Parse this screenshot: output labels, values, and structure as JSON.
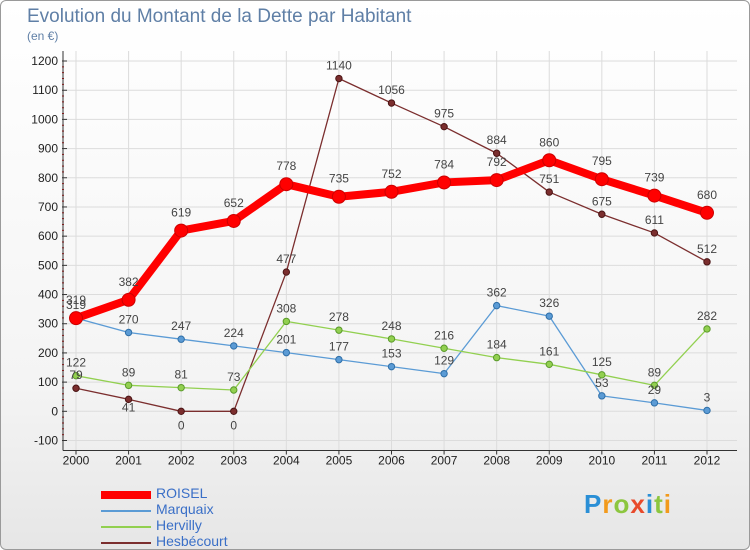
{
  "title": "Evolution du Montant de la Dette par Habitant",
  "unit": "(en €)",
  "logo": [
    "P",
    "r",
    "o",
    "x",
    "i",
    "t",
    "i"
  ],
  "logo_colors": [
    "#2a8fd6",
    "#f29a1c",
    "#8cc63f",
    "#e84a2b",
    "#2a8fd6",
    "#8cc63f",
    "#f29a1c"
  ],
  "chart_data": {
    "type": "line",
    "title": "Evolution du Montant de la Dette par Habitant",
    "ylabel": "(en €)",
    "xlabel": "",
    "x": [
      "2000",
      "2001",
      "2002",
      "2003",
      "2004",
      "2005",
      "2006",
      "2007",
      "2008",
      "2009",
      "2010",
      "2011",
      "2012"
    ],
    "ylim": [
      -100,
      1200
    ],
    "yticks": [
      "-100",
      "0",
      "100",
      "200",
      "300",
      "400",
      "500",
      "600",
      "700",
      "800",
      "900",
      "1000",
      "1100",
      "1200"
    ],
    "grid": true,
    "legend": "bottom-left",
    "series": [
      {
        "name": "ROISEL",
        "color": "#ff0000",
        "values": [
          319,
          382,
          619,
          652,
          778,
          735,
          752,
          784,
          792,
          860,
          795,
          739,
          680
        ]
      },
      {
        "name": "Marquaix",
        "color": "#5b9bd5",
        "values": [
          319,
          270,
          247,
          224,
          201,
          177,
          153,
          129,
          362,
          326,
          53,
          29,
          3
        ]
      },
      {
        "name": "Hervilly",
        "color": "#92d050",
        "values": [
          122,
          89,
          81,
          73,
          308,
          278,
          248,
          216,
          184,
          161,
          125,
          89,
          282
        ]
      },
      {
        "name": "Hesbécourt",
        "color": "#7b2e2e",
        "values": [
          79,
          41,
          0,
          0,
          477,
          1140,
          1056,
          975,
          884,
          751,
          675,
          611,
          512
        ]
      }
    ]
  }
}
